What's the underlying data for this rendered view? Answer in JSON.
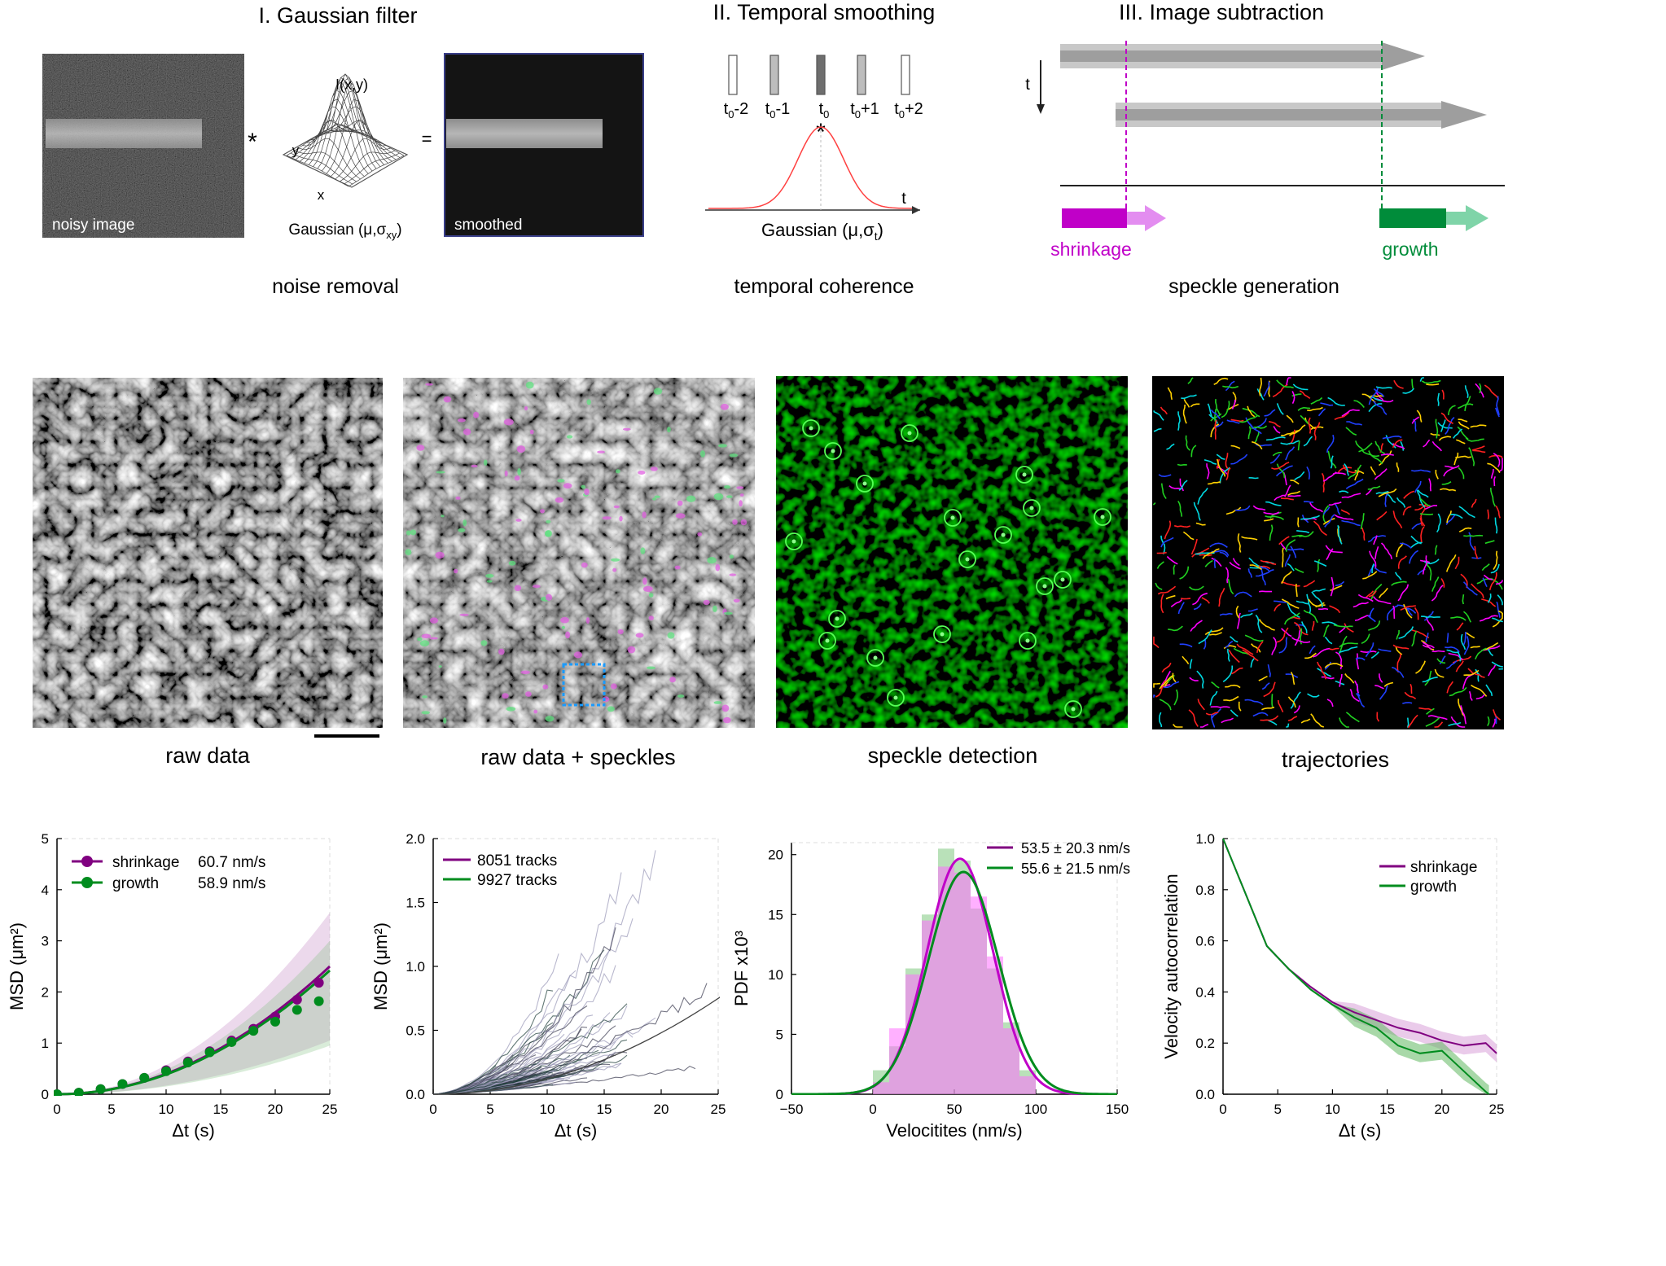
{
  "top_row": {
    "panel1": {
      "title": "I. Gaussian filter",
      "noisy_label": "noisy image",
      "smoothed_label": "smoothed",
      "conv_op": "*",
      "eq_op": "=",
      "surf_label": "I(x,y)",
      "axis_y": "y",
      "axis_x": "x",
      "gaussian_label_main": "Gaussian (μ,σ",
      "gaussian_label_sub": "xy",
      "gaussian_label_close": ")",
      "caption": "noise removal"
    },
    "panel2": {
      "title": "II. Temporal smoothing",
      "frames": [
        {
          "base": "t",
          "sub": "0",
          "suffix": "-2",
          "shade": "#ffffff"
        },
        {
          "base": "t",
          "sub": "0",
          "suffix": "-1",
          "shade": "#bdbdbd"
        },
        {
          "base": "t",
          "sub": "0",
          "suffix": "",
          "shade": "#6e6e6e"
        },
        {
          "base": "t",
          "sub": "0",
          "suffix": "+1",
          "shade": "#bdbdbd"
        },
        {
          "base": "t",
          "sub": "0",
          "suffix": "+2",
          "shade": "#ffffff"
        }
      ],
      "star": "*",
      "axis_t": "t",
      "gaussian_label_main": "Gaussian (μ,σ",
      "gaussian_label_sub": "t",
      "gaussian_label_close": ")",
      "caption": "temporal coherence"
    },
    "panel3": {
      "title": "III. Image subtraction",
      "axis_t": "t",
      "shrinkage_label": "shrinkage",
      "growth_label": "growth",
      "caption": "speckle generation",
      "colors": {
        "shrinkage": "#c000c8",
        "growth": "#008c3a"
      }
    }
  },
  "middle_row": {
    "captions": [
      "raw data",
      "raw data + speckles",
      "speckle detection",
      "trajectories"
    ],
    "trajectory_colors": [
      "#ff2020",
      "#2040ff",
      "#00d8e0",
      "#ffd000",
      "#ff00ff",
      "#20d020"
    ]
  },
  "bottom_row": {
    "chart1": {
      "ylabel": "MSD (μm²)",
      "xlabel": "Δt (s)",
      "yticks": [
        "0",
        "1",
        "2",
        "3",
        "4",
        "5"
      ],
      "xticks": [
        "0",
        "5",
        "10",
        "15",
        "20",
        "25"
      ],
      "legend": [
        {
          "name": "shrinkage",
          "value": "60.7 nm/s"
        },
        {
          "name": "growth",
          "value": "58.9 nm/s"
        }
      ]
    },
    "chart2": {
      "ylabel": "MSD (μm²)",
      "xlabel": "Δt (s)",
      "yticks": [
        "0.0",
        "0.5",
        "1.0",
        "1.5",
        "2.0"
      ],
      "xticks": [
        "0",
        "5",
        "10",
        "15",
        "20",
        "25"
      ],
      "legend": [
        "8051 tracks",
        "9927 tracks"
      ]
    },
    "chart3": {
      "ylabel": "PDF x10³",
      "xlabel": "Velocitites (nm/s)",
      "yticks": [
        "0",
        "5",
        "10",
        "15",
        "20"
      ],
      "xticks": [
        "−50",
        "0",
        "50",
        "100",
        "150"
      ],
      "legend": [
        "53.5 ± 20.3 nm/s",
        "55.6 ± 21.5 nm/s"
      ]
    },
    "chart4": {
      "ylabel": "Velocity autocorrelation",
      "xlabel": "Δt (s)",
      "yticks": [
        "0.0",
        "0.2",
        "0.4",
        "0.6",
        "0.8",
        "1.0"
      ],
      "xticks": [
        "0",
        "5",
        "10",
        "15",
        "20",
        "25"
      ],
      "legend": [
        "shrinkage",
        "growth"
      ]
    }
  },
  "chart_data": [
    {
      "type": "line",
      "xlabel": "Δt (s)",
      "ylabel": "MSD (μm²)",
      "xlim": [
        0,
        25
      ],
      "ylim": [
        0,
        5
      ],
      "series": [
        {
          "name": "shrinkage",
          "kind": "points+fit",
          "color": "#800080",
          "x": [
            0,
            2,
            4,
            6,
            8,
            10,
            12,
            14,
            16,
            18,
            20,
            22,
            24
          ],
          "y": [
            0.0,
            0.03,
            0.1,
            0.2,
            0.32,
            0.47,
            0.64,
            0.84,
            1.05,
            1.28,
            1.52,
            1.85,
            2.18
          ],
          "fit_end": 2.5,
          "band_upper_end": 3.55,
          "band_lower_end": 1.05
        },
        {
          "name": "growth",
          "kind": "points+fit",
          "color": "#008c1e",
          "x": [
            0,
            2,
            4,
            6,
            8,
            10,
            12,
            14,
            16,
            18,
            20,
            22,
            24
          ],
          "y": [
            0.0,
            0.03,
            0.1,
            0.2,
            0.32,
            0.45,
            0.62,
            0.82,
            1.02,
            1.24,
            1.42,
            1.65,
            1.82
          ],
          "fit_end": 2.42,
          "band_upper_end": 3.0,
          "band_lower_end": 0.95
        }
      ]
    },
    {
      "type": "line",
      "xlabel": "Δt (s)",
      "ylabel": "MSD (μm²)",
      "xlim": [
        0,
        25
      ],
      "ylim": [
        0,
        2.0
      ],
      "series": [
        {
          "name": "8051 tracks",
          "color": "#800080"
        },
        {
          "name": "9927 tracks",
          "color": "#008c1e"
        }
      ]
    },
    {
      "type": "bar",
      "xlabel": "Velocitites (nm/s)",
      "ylabel": "PDF x10³",
      "xlim": [
        -50,
        150
      ],
      "ylim": [
        0,
        21
      ],
      "bin_edges": [
        0,
        10,
        20,
        30,
        40,
        50,
        60,
        70,
        80,
        90,
        100
      ],
      "series": [
        {
          "name": "53.5 ± 20.3 nm/s",
          "color": "#c000c8",
          "mean": 53.5,
          "sd": 20.3,
          "values": [
            1.0,
            5.5,
            10.0,
            14.5,
            19.0,
            18.5,
            16.5,
            11.5,
            5.5,
            1.5
          ]
        },
        {
          "name": "55.6 ± 21.5 nm/s",
          "color": "#008c1e",
          "mean": 55.6,
          "sd": 21.5,
          "values": [
            2.0,
            4.0,
            10.5,
            15.0,
            20.5,
            19.5,
            15.5,
            10.5,
            6.0,
            2.0
          ]
        }
      ]
    },
    {
      "type": "line",
      "xlabel": "Δt (s)",
      "ylabel": "Velocity autocorrelation",
      "xlim": [
        0,
        25
      ],
      "ylim": [
        0,
        1.0
      ],
      "series": [
        {
          "name": "shrinkage",
          "color": "#800080",
          "x": [
            0,
            2,
            4,
            6,
            8,
            10,
            12,
            14,
            16,
            18,
            20,
            22,
            24,
            25
          ],
          "y": [
            1.0,
            0.79,
            0.58,
            0.49,
            0.42,
            0.36,
            0.32,
            0.29,
            0.26,
            0.24,
            0.21,
            0.19,
            0.2,
            0.16
          ]
        },
        {
          "name": "growth",
          "color": "#008c1e",
          "x": [
            0,
            2,
            4,
            6,
            8,
            10,
            12,
            14,
            16,
            18,
            20,
            22,
            24,
            24.3
          ],
          "y": [
            1.0,
            0.79,
            0.58,
            0.49,
            0.41,
            0.35,
            0.3,
            0.26,
            0.19,
            0.16,
            0.17,
            0.09,
            0.01,
            0.0
          ]
        }
      ]
    }
  ]
}
